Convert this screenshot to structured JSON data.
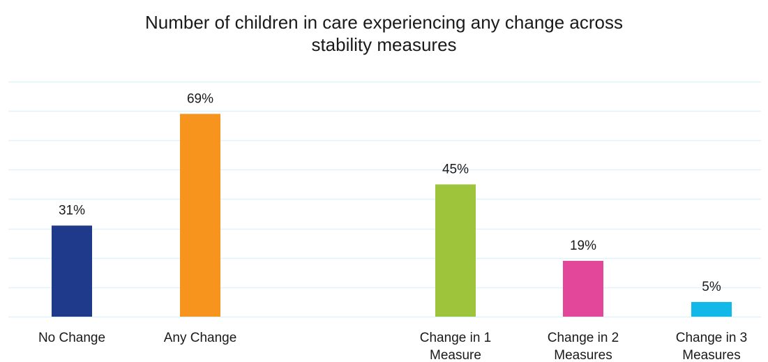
{
  "chart_data": {
    "type": "bar",
    "title_lines": [
      "Number of children in care experiencing any change across",
      "stability measures"
    ],
    "xlabel": "",
    "ylabel": "",
    "ylim": [
      0,
      80
    ],
    "grid": true,
    "legend": "none",
    "categories": [
      {
        "label_lines": [
          "No Change"
        ],
        "group": 0
      },
      {
        "label_lines": [
          "Any Change"
        ],
        "group": 0
      },
      {
        "label_lines": [
          "Change in 1",
          "Measure"
        ],
        "group": 1
      },
      {
        "label_lines": [
          "Change in 2",
          "Measures"
        ],
        "group": 1
      },
      {
        "label_lines": [
          "Change in 3",
          "Measures"
        ],
        "group": 1
      }
    ],
    "values": [
      31,
      69,
      45,
      19,
      5
    ],
    "data_labels": [
      "31%",
      "69%",
      "45%",
      "19%",
      "5%"
    ],
    "colors": [
      "#1f3a8a",
      "#f7941d",
      "#9dc43a",
      "#e2479a",
      "#12b8e8"
    ],
    "grid_color": "#dff3f9"
  }
}
